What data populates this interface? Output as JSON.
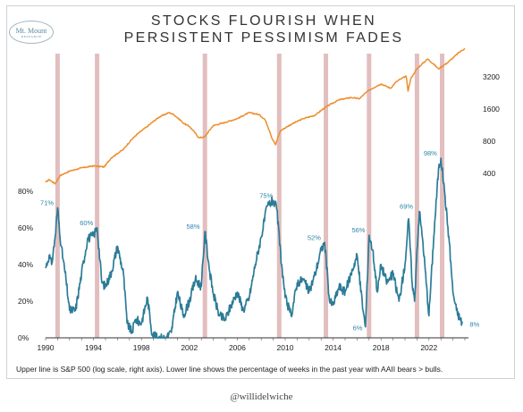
{
  "header": {
    "logo_line1": "Mt. Mount",
    "logo_line2": "RESEARCH",
    "title_line1": "STOCKS FLOURISH WHEN",
    "title_line2": "PERSISTENT PESSIMISM FADES"
  },
  "footer": {
    "caption": "Upper line is S&P 500 (log scale, right axis). Lower line shows the percentage of weeks in the past year with AAII bears > bulls.",
    "credit": "@willidelwiche"
  },
  "chart_data": {
    "type": "line",
    "title": "STOCKS FLOURISH WHEN PERSISTENT PESSIMISM FADES",
    "xlim": [
      1990,
      2025
    ],
    "x_ticks": [
      1990,
      1994,
      1998,
      2002,
      2006,
      2010,
      2014,
      2018,
      2022
    ],
    "y_left": {
      "lim": [
        0,
        90
      ],
      "ticks": [
        0,
        20,
        40,
        60,
        80
      ],
      "tick_suffix": "%"
    },
    "y_right": {
      "scale": "log",
      "ticks": [
        400,
        800,
        1600,
        3200
      ]
    },
    "colors": {
      "sp500": "#ec8f2e",
      "bears": "#2c7b97",
      "band": "#dfb7b7"
    },
    "highlight_years": [
      1991.0,
      1994.3,
      2003.3,
      2009.5,
      2013.4,
      2017.0,
      2021.0,
      2023.1
    ],
    "peak_labels": [
      {
        "x": 1990.9,
        "y": 71,
        "text": "71%"
      },
      {
        "x": 1994.2,
        "y": 60,
        "text": "60%"
      },
      {
        "x": 2003.1,
        "y": 58,
        "text": "58%"
      },
      {
        "x": 2009.2,
        "y": 75,
        "text": "75%"
      },
      {
        "x": 2013.2,
        "y": 52,
        "text": "52%"
      },
      {
        "x": 2016.9,
        "y": 56,
        "text": "56%"
      },
      {
        "x": 2016.6,
        "y": 6,
        "text": "6%"
      },
      {
        "x": 2020.9,
        "y": 69,
        "text": "69%"
      },
      {
        "x": 2022.9,
        "y": 98,
        "text": "98%"
      },
      {
        "x": 2024.8,
        "y": 8,
        "text": "8%"
      }
    ],
    "series": [
      {
        "axis": "right",
        "x": [
          1990.0,
          1990.3,
          1990.8,
          1991.2,
          1992.0,
          1993.0,
          1994.0,
          1994.9,
          1995.5,
          1996.5,
          1997.5,
          1998.5,
          1999.5,
          2000.3,
          2000.7,
          2001.5,
          2002.0,
          2002.8,
          2003.3,
          2004.0,
          2005.0,
          2006.0,
          2007.0,
          2007.8,
          2008.3,
          2008.9,
          2009.2,
          2009.6,
          2010.5,
          2011.5,
          2012.5,
          2013.5,
          2014.5,
          2015.5,
          2016.2,
          2017.0,
          2018.0,
          2018.8,
          2019.3,
          2020.1,
          2020.25,
          2020.5,
          2021.0,
          2021.9,
          2022.8,
          2023.5,
          2024.0,
          2024.5,
          2025.0
        ],
        "y": [
          330,
          350,
          320,
          380,
          420,
          450,
          470,
          460,
          560,
          670,
          900,
          1100,
          1350,
          1480,
          1420,
          1180,
          1100,
          860,
          880,
          1120,
          1200,
          1300,
          1480,
          1420,
          1280,
          850,
          740,
          1000,
          1150,
          1300,
          1400,
          1700,
          1950,
          2050,
          2000,
          2400,
          2750,
          2500,
          2900,
          3250,
          2350,
          3100,
          3800,
          4700,
          3800,
          4300,
          4800,
          5400,
          5900
        ]
      },
      {
        "axis": "left",
        "x": [
          1990.0,
          1990.3,
          1990.5,
          1990.8,
          1991.0,
          1991.3,
          1991.7,
          1992.0,
          1992.5,
          1993.0,
          1993.5,
          1994.0,
          1994.3,
          1994.7,
          1995.0,
          1995.5,
          1996.0,
          1996.5,
          1996.8,
          1997.2,
          1997.5,
          1998.0,
          1998.5,
          1998.9,
          1999.3,
          1999.7,
          2000.0,
          2000.5,
          2001.0,
          2001.5,
          2002.0,
          2002.5,
          2003.0,
          2003.3,
          2003.7,
          2004.0,
          2004.5,
          2005.0,
          2005.5,
          2006.0,
          2006.5,
          2007.0,
          2007.5,
          2008.0,
          2008.5,
          2009.0,
          2009.3,
          2009.7,
          2010.0,
          2010.5,
          2011.0,
          2011.5,
          2012.0,
          2012.5,
          2013.0,
          2013.3,
          2013.7,
          2014.0,
          2014.5,
          2015.0,
          2015.5,
          2016.0,
          2016.5,
          2016.7,
          2017.0,
          2017.3,
          2017.7,
          2018.0,
          2018.5,
          2019.0,
          2019.5,
          2020.0,
          2020.3,
          2020.6,
          2020.8,
          2021.0,
          2021.2,
          2021.5,
          2022.0,
          2022.4,
          2022.8,
          2023.0,
          2023.3,
          2023.7,
          2024.0,
          2024.3,
          2024.6,
          2024.8
        ],
        "y": [
          38,
          45,
          40,
          55,
          71,
          50,
          32,
          15,
          15,
          35,
          54,
          56,
          60,
          30,
          28,
          36,
          50,
          35,
          8,
          3,
          10,
          8,
          22,
          2,
          0,
          0,
          0,
          3,
          25,
          12,
          20,
          32,
          28,
          58,
          36,
          24,
          12,
          10,
          18,
          25,
          15,
          22,
          40,
          55,
          72,
          75,
          70,
          40,
          22,
          12,
          30,
          32,
          25,
          35,
          48,
          52,
          20,
          18,
          28,
          25,
          35,
          45,
          15,
          6,
          56,
          48,
          25,
          40,
          30,
          35,
          20,
          40,
          65,
          30,
          20,
          48,
          69,
          52,
          12,
          55,
          92,
          98,
          80,
          52,
          25,
          15,
          10,
          8
        ]
      }
    ]
  }
}
